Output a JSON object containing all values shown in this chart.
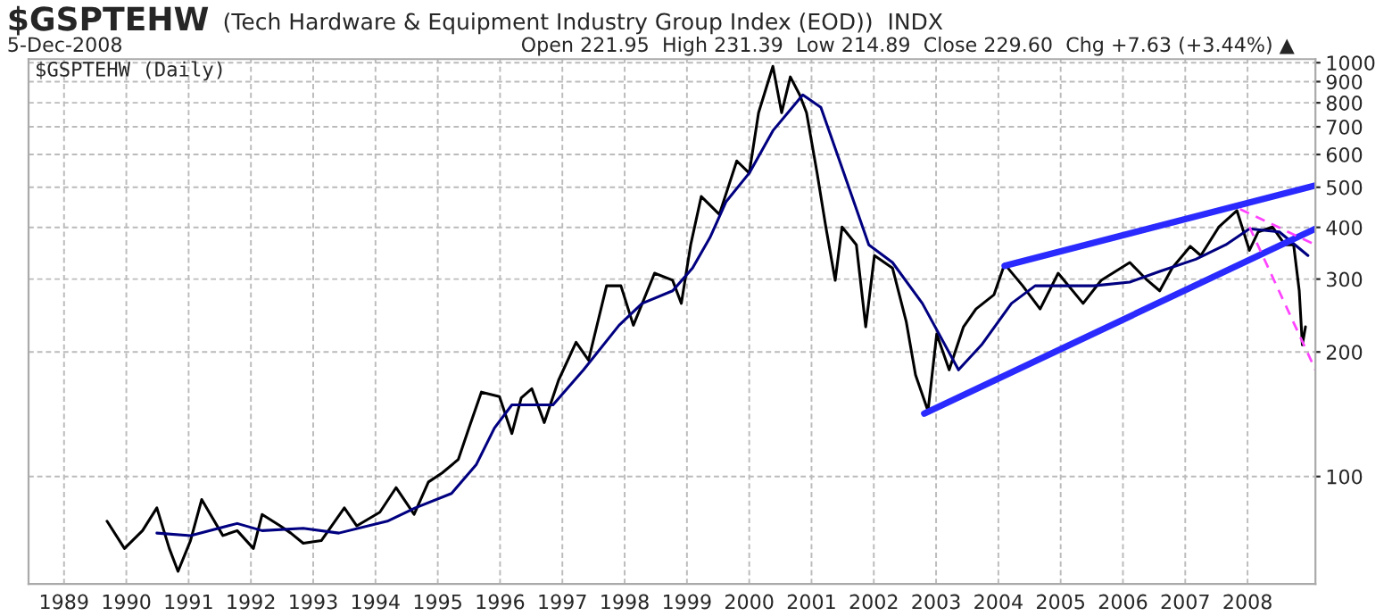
{
  "chart_data": {
    "type": "line",
    "title": "$GSPTEHW",
    "subtitle": "(Tech Hardware & Equipment Industry Group Index (EOD))  INDX",
    "annotations": [
      "5-Dec-2008",
      "Open 221.95  High 231.39  Low 214.89  Close 229.60  Chg +7.63 (+3.44%) ▲",
      "$GSPTEHW (Daily)"
    ],
    "log": true,
    "grid": true,
    "legend": false,
    "xlim": [
      1988.43,
      2009.09
    ],
    "xticks": [
      1989,
      1990,
      1991,
      1992,
      1993,
      1994,
      1995,
      1996,
      1997,
      1998,
      1999,
      2000,
      2001,
      2002,
      2003,
      2004,
      2005,
      2006,
      2007,
      2008
    ],
    "ylim": [
      55,
      1020
    ],
    "yticks": [
      100,
      200,
      300,
      400,
      500,
      600,
      700,
      800,
      900,
      1000
    ],
    "series": [
      {
        "color": "#000000",
        "line_style": "solid",
        "x": [
          1989.69,
          1989.97,
          1990.26,
          1990.49,
          1990.69,
          1990.83,
          1991.03,
          1991.21,
          1991.35,
          1991.55,
          1991.78,
          1992.04,
          1992.18,
          1992.47,
          1992.64,
          1992.84,
          1993.13,
          1993.5,
          1993.7,
          1994.07,
          1994.33,
          1994.62,
          1994.85,
          1995.07,
          1995.33,
          1995.5,
          1995.7,
          1995.99,
          1996.19,
          1996.34,
          1996.51,
          1996.71,
          1996.94,
          1997.22,
          1997.42,
          1997.71,
          1997.94,
          1998.14,
          1998.48,
          1998.77,
          1998.91,
          1999.06,
          1999.23,
          1999.52,
          1999.8,
          2000.0,
          2000.15,
          2000.38,
          2000.52,
          2000.66,
          2000.81,
          2000.92,
          2001.09,
          2001.23,
          2001.38,
          2001.49,
          2001.72,
          2001.87,
          2002.01,
          2002.3,
          2002.52,
          2002.67,
          2002.87,
          2003.01,
          2003.21,
          2003.44,
          2003.64,
          2003.93,
          2004.1,
          2004.39,
          2004.67,
          2004.96,
          2005.36,
          2005.65,
          2006.11,
          2006.39,
          2006.59,
          2006.79,
          2007.08,
          2007.25,
          2007.54,
          2007.83,
          2008.03,
          2008.17,
          2008.4,
          2008.6,
          2008.74,
          2008.83,
          2008.88,
          2008.93
        ],
        "values": [
          78,
          67,
          74,
          84,
          67,
          59,
          70,
          88,
          81,
          72,
          74,
          67,
          81,
          76,
          73,
          69,
          70,
          84,
          76,
          82,
          94,
          81,
          97,
          102,
          110,
          131,
          160,
          156,
          127,
          155,
          163,
          135,
          171,
          211,
          191,
          289,
          289,
          232,
          310,
          298,
          262,
          363,
          475,
          430,
          579,
          541,
          757,
          980,
          757,
          924,
          836,
          757,
          541,
          401,
          298,
          401,
          363,
          230,
          342,
          319,
          237,
          176,
          144,
          221,
          181,
          230,
          254,
          275,
          326,
          289,
          254,
          310,
          262,
          298,
          329,
          298,
          281,
          319,
          360,
          342,
          401,
          439,
          352,
          390,
          401,
          363,
          363,
          281,
          208,
          230
        ]
      },
      {
        "color": "#000080",
        "line_style": "solid",
        "x": [
          1990.49,
          1991.03,
          1991.78,
          1992.18,
          1992.84,
          1993.41,
          1994.19,
          1994.64,
          1995.22,
          1995.62,
          1995.91,
          1996.19,
          1996.85,
          1997.34,
          1997.91,
          1998.28,
          1998.77,
          1999.09,
          1999.37,
          1999.63,
          2000.0,
          2000.38,
          2000.86,
          2001.15,
          2001.52,
          2001.92,
          2002.3,
          2002.78,
          2003.36,
          2003.73,
          2004.21,
          2004.59,
          2005.53,
          2006.11,
          2006.59,
          2007.17,
          2007.65,
          2008.03,
          2008.51,
          2008.97
        ],
        "values": [
          73,
          72,
          77,
          74,
          75,
          73,
          78,
          84,
          91,
          107,
          131,
          149,
          149,
          181,
          232,
          262,
          281,
          319,
          378,
          462,
          541,
          685,
          836,
          780,
          541,
          363,
          329,
          262,
          181,
          208,
          262,
          289,
          289,
          295,
          313,
          335,
          363,
          397,
          390,
          342
        ]
      },
      {
        "color": "#2a2aff",
        "line_style": "solid",
        "x": [
          2004.1,
          2009.09
        ],
        "values": [
          323,
          505
        ]
      },
      {
        "color": "#2a2aff",
        "line_style": "solid",
        "x": [
          2002.81,
          2009.09
        ],
        "values": [
          142,
          397
        ]
      },
      {
        "color": "#ff44ff",
        "line_style": "dashed",
        "x": [
          2007.88,
          2009.09
        ],
        "values": [
          443,
          363
        ]
      },
      {
        "color": "#ff44ff",
        "line_style": "dashed",
        "x": [
          2008.03,
          2009.09
        ],
        "values": [
          401,
          181
        ]
      }
    ]
  }
}
